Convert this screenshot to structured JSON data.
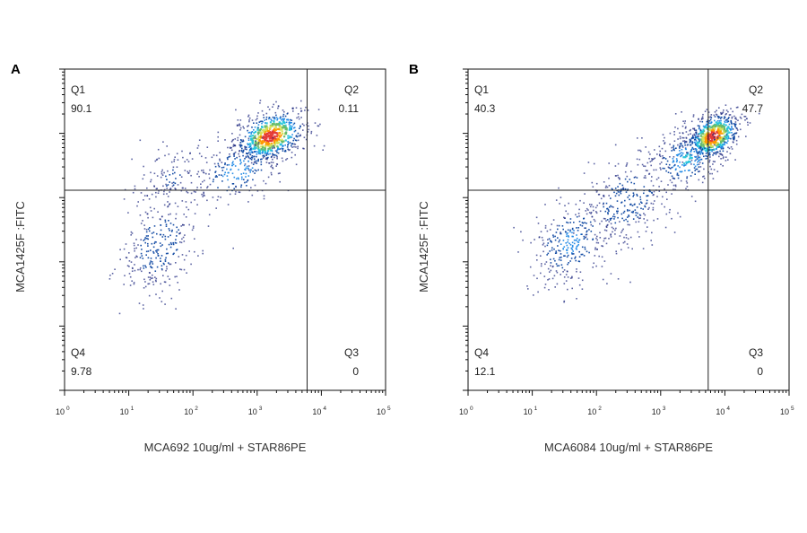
{
  "chart_data": [
    {
      "type": "scatter",
      "panel_label": "A",
      "xlabel": "MCA692 10ug/ml + STAR86PE",
      "ylabel": "MCA1425F :FITC",
      "x_scale": "log",
      "y_scale": "log",
      "xlim": [
        1,
        100000
      ],
      "ylim": [
        1,
        100000
      ],
      "x_ticks": [
        {
          "base": "10",
          "exp": "0"
        },
        {
          "base": "10",
          "exp": "1"
        },
        {
          "base": "10",
          "exp": "2"
        },
        {
          "base": "10",
          "exp": "3"
        },
        {
          "base": "10",
          "exp": "4"
        },
        {
          "base": "10",
          "exp": "5"
        }
      ],
      "gate": {
        "x": 6000,
        "y": 1300
      },
      "quadrants": [
        {
          "name": "Q1",
          "percent": "90.1"
        },
        {
          "name": "Q2",
          "percent": "0.11"
        },
        {
          "name": "Q3",
          "percent": "0"
        },
        {
          "name": "Q4",
          "percent": "9.78"
        }
      ],
      "populations": [
        {
          "x": 1600,
          "y": 9000,
          "sx": 0.28,
          "sy": 0.2,
          "n": 650,
          "peak": 1.0
        },
        {
          "x": 500,
          "y": 2600,
          "sx": 0.35,
          "sy": 0.25,
          "n": 230,
          "peak": 0.35
        },
        {
          "x": 45,
          "y": 2000,
          "sx": 0.3,
          "sy": 0.25,
          "n": 110,
          "peak": 0.15
        },
        {
          "x": 30,
          "y": 180,
          "sx": 0.32,
          "sy": 0.4,
          "n": 300,
          "peak": 0.25
        }
      ],
      "color_scale": [
        "#1a237e",
        "#0d47a1",
        "#1e88e5",
        "#26c6da",
        "#66bb6a",
        "#d4e157",
        "#ff9800",
        "#e53935"
      ]
    },
    {
      "type": "scatter",
      "panel_label": "B",
      "xlabel": "MCA6084 10ug/ml + STAR86PE",
      "ylabel": "MCA1425F :FITC",
      "x_scale": "log",
      "y_scale": "log",
      "xlim": [
        1,
        100000
      ],
      "ylim": [
        1,
        100000
      ],
      "x_ticks": [
        {
          "base": "10",
          "exp": "0"
        },
        {
          "base": "10",
          "exp": "1"
        },
        {
          "base": "10",
          "exp": "2"
        },
        {
          "base": "10",
          "exp": "3"
        },
        {
          "base": "10",
          "exp": "4"
        },
        {
          "base": "10",
          "exp": "5"
        }
      ],
      "gate": {
        "x": 5500,
        "y": 1300
      },
      "quadrants": [
        {
          "name": "Q1",
          "percent": "40.3"
        },
        {
          "name": "Q2",
          "percent": "47.7"
        },
        {
          "name": "Q3",
          "percent": "0"
        },
        {
          "name": "Q4",
          "percent": "12.1"
        }
      ],
      "populations": [
        {
          "x": 6500,
          "y": 9000,
          "sx": 0.22,
          "sy": 0.18,
          "n": 600,
          "peak": 1.0
        },
        {
          "x": 2500,
          "y": 4000,
          "sx": 0.3,
          "sy": 0.25,
          "n": 260,
          "peak": 0.4
        },
        {
          "x": 300,
          "y": 900,
          "sx": 0.4,
          "sy": 0.35,
          "n": 300,
          "peak": 0.25
        },
        {
          "x": 40,
          "y": 200,
          "sx": 0.35,
          "sy": 0.35,
          "n": 320,
          "peak": 0.3
        }
      ],
      "color_scale": [
        "#1a237e",
        "#0d47a1",
        "#1e88e5",
        "#26c6da",
        "#66bb6a",
        "#d4e157",
        "#ff9800",
        "#e53935"
      ]
    }
  ]
}
